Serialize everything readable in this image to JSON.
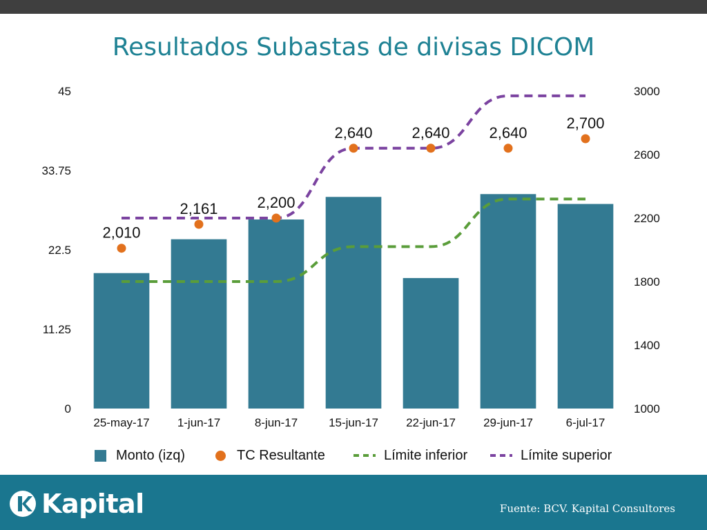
{
  "title": "Resultados Subastas de divisas DICOM",
  "chart_data": {
    "type": "bar",
    "categories": [
      "25-may-17",
      "1-jun-17",
      "8-jun-17",
      "15-jun-17",
      "22-jun-17",
      "29-jun-17",
      "6-jul-17"
    ],
    "y_left": {
      "ticks": [
        "45",
        "33.75",
        "22.5",
        "11.25",
        "0"
      ],
      "range": [
        0,
        45
      ]
    },
    "y_right": {
      "ticks": [
        "3000",
        "2600",
        "2200",
        "1800",
        "1400",
        "1000"
      ],
      "range": [
        1000,
        3000
      ]
    },
    "series": [
      {
        "name": "Monto (izq)",
        "type": "bar",
        "axis": "left",
        "color": "#337a92",
        "values": [
          19.2,
          24.0,
          26.8,
          30.0,
          18.5,
          30.4,
          29.0
        ]
      },
      {
        "name": "TC Resultante",
        "type": "scatter",
        "axis": "right",
        "color": "#e2711d",
        "values": [
          2010,
          2161,
          2200,
          2640,
          2640,
          2640,
          2700
        ],
        "labels": [
          "2,010",
          "2,161",
          "2,200",
          "2,640",
          "2,640",
          "2,640",
          "2,700"
        ]
      },
      {
        "name": "Límite inferior",
        "type": "line",
        "style": "dashed",
        "axis": "right",
        "color": "#5a9d3a",
        "values": [
          1800,
          1800,
          1800,
          2020,
          2020,
          2320,
          2320
        ]
      },
      {
        "name": "Límite superior",
        "type": "line",
        "style": "dashed",
        "axis": "right",
        "color": "#7b43a0",
        "values": [
          2200,
          2200,
          2200,
          2640,
          2640,
          2970,
          2970
        ]
      }
    ],
    "legend": [
      "Monto (izq)",
      "TC Resultante",
      "Límite inferior",
      "Límite superior"
    ],
    "legend_position": "bottom",
    "grid": false
  },
  "footer": {
    "logo_text": "Kapital",
    "source": "Fuente: BCV. Kapital Consultores"
  }
}
